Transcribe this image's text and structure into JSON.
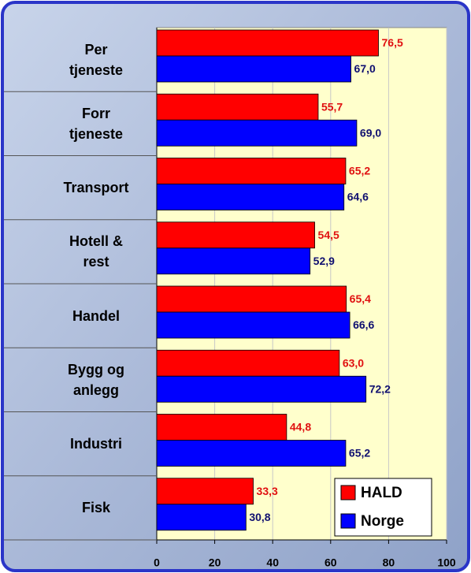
{
  "chart_data": {
    "type": "hbar",
    "categories": [
      "Per\ntjeneste",
      "Forr\ntjeneste",
      "Transport",
      "Hotell &\nrest",
      "Handel",
      "Bygg og\nanlegg",
      "Industri",
      "Fisk"
    ],
    "series": [
      {
        "name": "HALD",
        "color": "#ff0000",
        "label_color": "#e01010",
        "values": [
          76.5,
          55.7,
          65.2,
          54.5,
          65.4,
          63.0,
          44.8,
          33.3
        ],
        "value_labels": [
          "76,5",
          "55,7",
          "65,2",
          "54,5",
          "65,4",
          "63,0",
          "44,8",
          "33,3"
        ]
      },
      {
        "name": "Norge",
        "color": "#0000ff",
        "label_color": "#101070",
        "values": [
          67.0,
          69.0,
          64.6,
          52.9,
          66.6,
          72.2,
          65.2,
          30.8
        ],
        "value_labels": [
          "67,0",
          "69,0",
          "64,6",
          "52,9",
          "66,6",
          "72,2",
          "65,2",
          "30,8"
        ]
      }
    ],
    "xlim": [
      0,
      100
    ],
    "xticks": [
      0,
      20,
      40,
      60,
      80,
      100
    ],
    "grid": true,
    "legend": "lower right"
  }
}
